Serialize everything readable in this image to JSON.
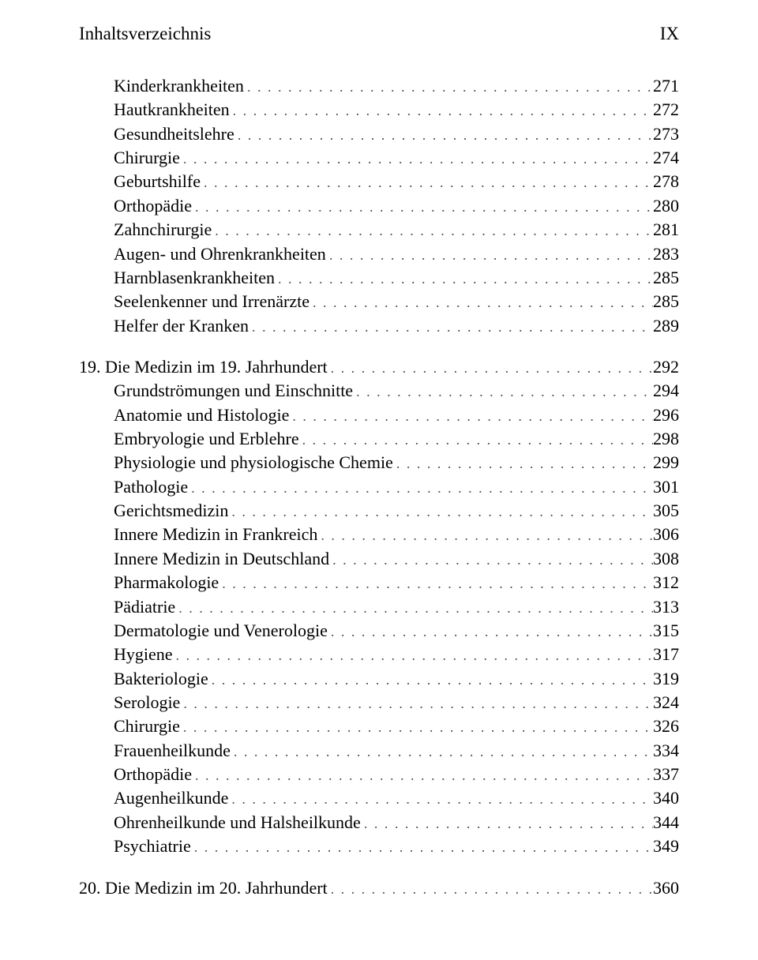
{
  "header": {
    "title": "Inhaltsverzeichnis",
    "page": "IX"
  },
  "sections": [
    {
      "chapter": null,
      "items": [
        {
          "label": "Kinderkrankheiten",
          "page": "271",
          "indent": true
        },
        {
          "label": "Hautkrankheiten",
          "page": "272",
          "indent": true
        },
        {
          "label": "Gesundheitslehre",
          "page": "273",
          "indent": true
        },
        {
          "label": "Chirurgie",
          "page": "274",
          "indent": true
        },
        {
          "label": "Geburtshilfe",
          "page": "278",
          "indent": true
        },
        {
          "label": "Orthopädie",
          "page": "280",
          "indent": true
        },
        {
          "label": "Zahnchirurgie",
          "page": "281",
          "indent": true
        },
        {
          "label": "Augen- und Ohrenkrankheiten",
          "page": "283",
          "indent": true
        },
        {
          "label": "Harnblasenkrankheiten",
          "page": "285",
          "indent": true
        },
        {
          "label": "Seelenkenner und Irrenärzte",
          "page": "285",
          "indent": true
        },
        {
          "label": "Helfer der Kranken",
          "page": "289",
          "indent": true
        }
      ]
    },
    {
      "chapter": "19.",
      "heading": {
        "label": "Die Medizin im 19. Jahrhundert",
        "page": "292"
      },
      "items": [
        {
          "label": "Grundströmungen und Einschnitte",
          "page": "294",
          "indent": true
        },
        {
          "label": "Anatomie und Histologie",
          "page": "296",
          "indent": true
        },
        {
          "label": "Embryologie und Erblehre",
          "page": "298",
          "indent": true
        },
        {
          "label": "Physiologie und physiologische Chemie",
          "page": "299",
          "indent": true
        },
        {
          "label": "Pathologie",
          "page": "301",
          "indent": true
        },
        {
          "label": "Gerichtsmedizin",
          "page": "305",
          "indent": true
        },
        {
          "label": "Innere Medizin in Frankreich",
          "page": "306",
          "indent": true
        },
        {
          "label": "Innere Medizin in Deutschland",
          "page": "308",
          "indent": true
        },
        {
          "label": "Pharmakologie",
          "page": "312",
          "indent": true
        },
        {
          "label": "Pädiatrie",
          "page": "313",
          "indent": true
        },
        {
          "label": "Dermatologie und Venerologie",
          "page": "315",
          "indent": true
        },
        {
          "label": "Hygiene",
          "page": "317",
          "indent": true
        },
        {
          "label": "Bakteriologie",
          "page": "319",
          "indent": true
        },
        {
          "label": "Serologie",
          "page": "324",
          "indent": true
        },
        {
          "label": "Chirurgie",
          "page": "326",
          "indent": true
        },
        {
          "label": "Frauenheilkunde",
          "page": "334",
          "indent": true
        },
        {
          "label": "Orthopädie",
          "page": "337",
          "indent": true
        },
        {
          "label": "Augenheilkunde",
          "page": "340",
          "indent": true
        },
        {
          "label": "Ohrenheilkunde und Halsheilkunde",
          "page": "344",
          "indent": true
        },
        {
          "label": "Psychiatrie",
          "page": "349",
          "indent": true
        }
      ]
    },
    {
      "chapter": "20.",
      "heading": {
        "label": "Die Medizin im 20. Jahrhundert",
        "page": "360"
      },
      "items": []
    }
  ],
  "dots_fill": ". . . . . . . . . . . . . . . . . . . . . . . . . . . . . . . . . . . . . . . . . . . . . . . . . . . . . . . . . . . . . . . . . . . . . . . . . . . . . . . ."
}
